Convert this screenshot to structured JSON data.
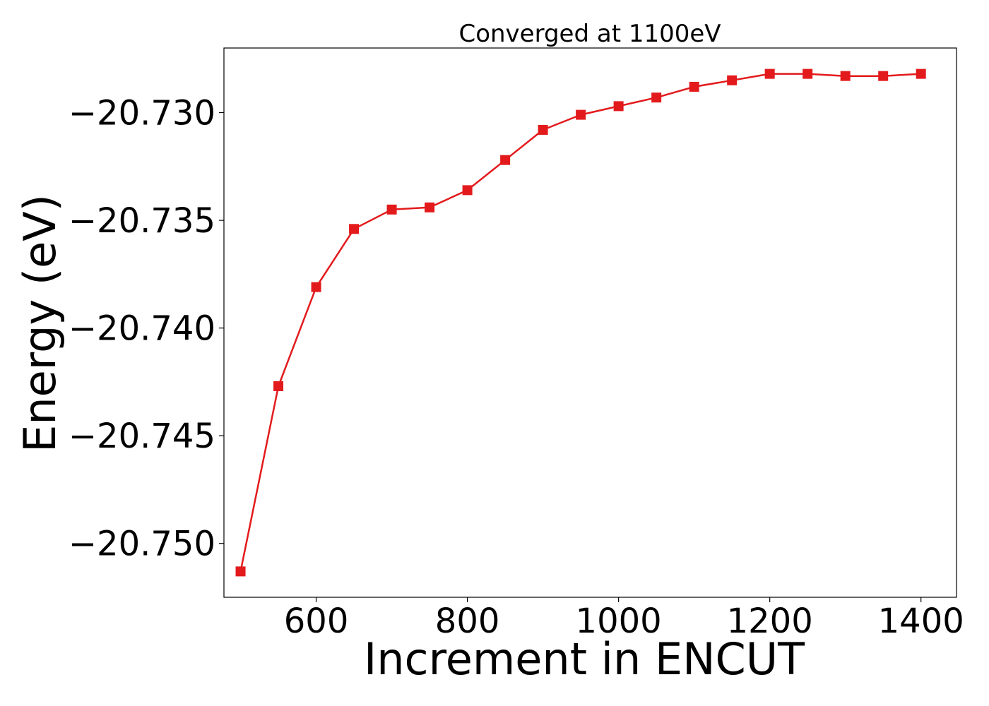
{
  "chart_data": {
    "type": "line",
    "title": "Converged at 1100eV",
    "xlabel": "Increment in ENCUT",
    "ylabel": "Energy (eV)",
    "xlim": [
      478,
      1447
    ],
    "ylim": [
      -20.7525,
      -20.727
    ],
    "x_ticks": [
      600,
      800,
      1000,
      1200,
      1400
    ],
    "x_tick_labels": [
      "600",
      "800",
      "1000",
      "1200",
      "1400"
    ],
    "y_ticks": [
      -20.75,
      -20.745,
      -20.74,
      -20.735,
      -20.73
    ],
    "y_tick_labels": [
      "−20.750",
      "−20.745",
      "−20.740",
      "−20.735",
      "−20.730"
    ],
    "grid": false,
    "series": [
      {
        "color": "#e31a1c",
        "marker": "square",
        "points": [
          {
            "x": 500,
            "y": -20.7513
          },
          {
            "x": 550,
            "y": -20.7427
          },
          {
            "x": 600,
            "y": -20.7381
          },
          {
            "x": 650,
            "y": -20.7354
          },
          {
            "x": 700,
            "y": -20.7345
          },
          {
            "x": 750,
            "y": -20.7344
          },
          {
            "x": 800,
            "y": -20.7336
          },
          {
            "x": 850,
            "y": -20.7322
          },
          {
            "x": 900,
            "y": -20.7308
          },
          {
            "x": 950,
            "y": -20.7301
          },
          {
            "x": 1000,
            "y": -20.7297
          },
          {
            "x": 1050,
            "y": -20.7293
          },
          {
            "x": 1100,
            "y": -20.7288
          },
          {
            "x": 1150,
            "y": -20.7285
          },
          {
            "x": 1200,
            "y": -20.7282
          },
          {
            "x": 1250,
            "y": -20.7282
          },
          {
            "x": 1300,
            "y": -20.7283
          },
          {
            "x": 1350,
            "y": -20.7283
          },
          {
            "x": 1400,
            "y": -20.7282
          }
        ]
      }
    ]
  }
}
